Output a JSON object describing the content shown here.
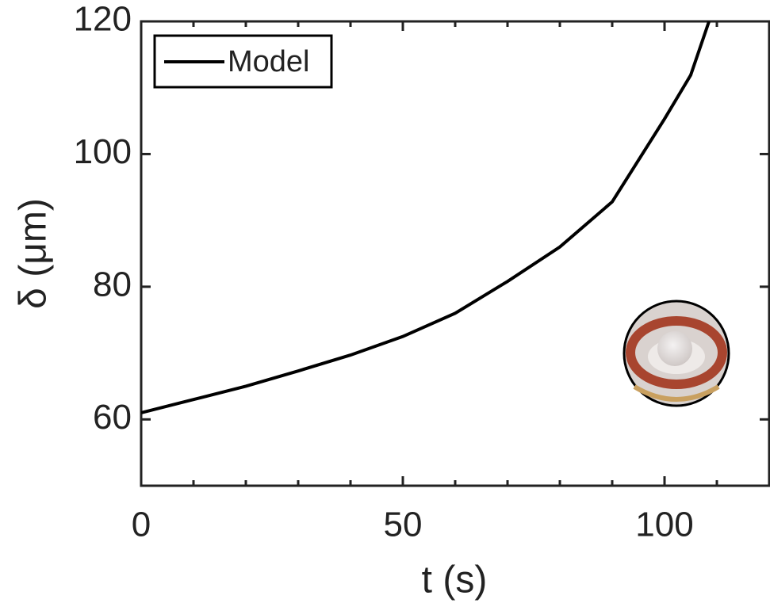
{
  "chart_data": {
    "type": "line",
    "x_label": "t (s)",
    "y_label": "δ (μm)",
    "xlim": [
      0,
      120
    ],
    "ylim": [
      50,
      120
    ],
    "xticks": [
      0,
      50,
      100
    ],
    "yticks": [
      60,
      80,
      100,
      120
    ],
    "legend": "upper left",
    "x": [
      0,
      10,
      20,
      30,
      40,
      50,
      60,
      70,
      80,
      90,
      100,
      105,
      108.5
    ],
    "series": [
      {
        "name": "Model",
        "color": "#000000",
        "values": [
          61,
          63,
          65,
          67.3,
          69.7,
          72.5,
          76,
          80.8,
          86,
          92.8,
          105.3,
          111.9,
          120
        ]
      }
    ]
  }
}
